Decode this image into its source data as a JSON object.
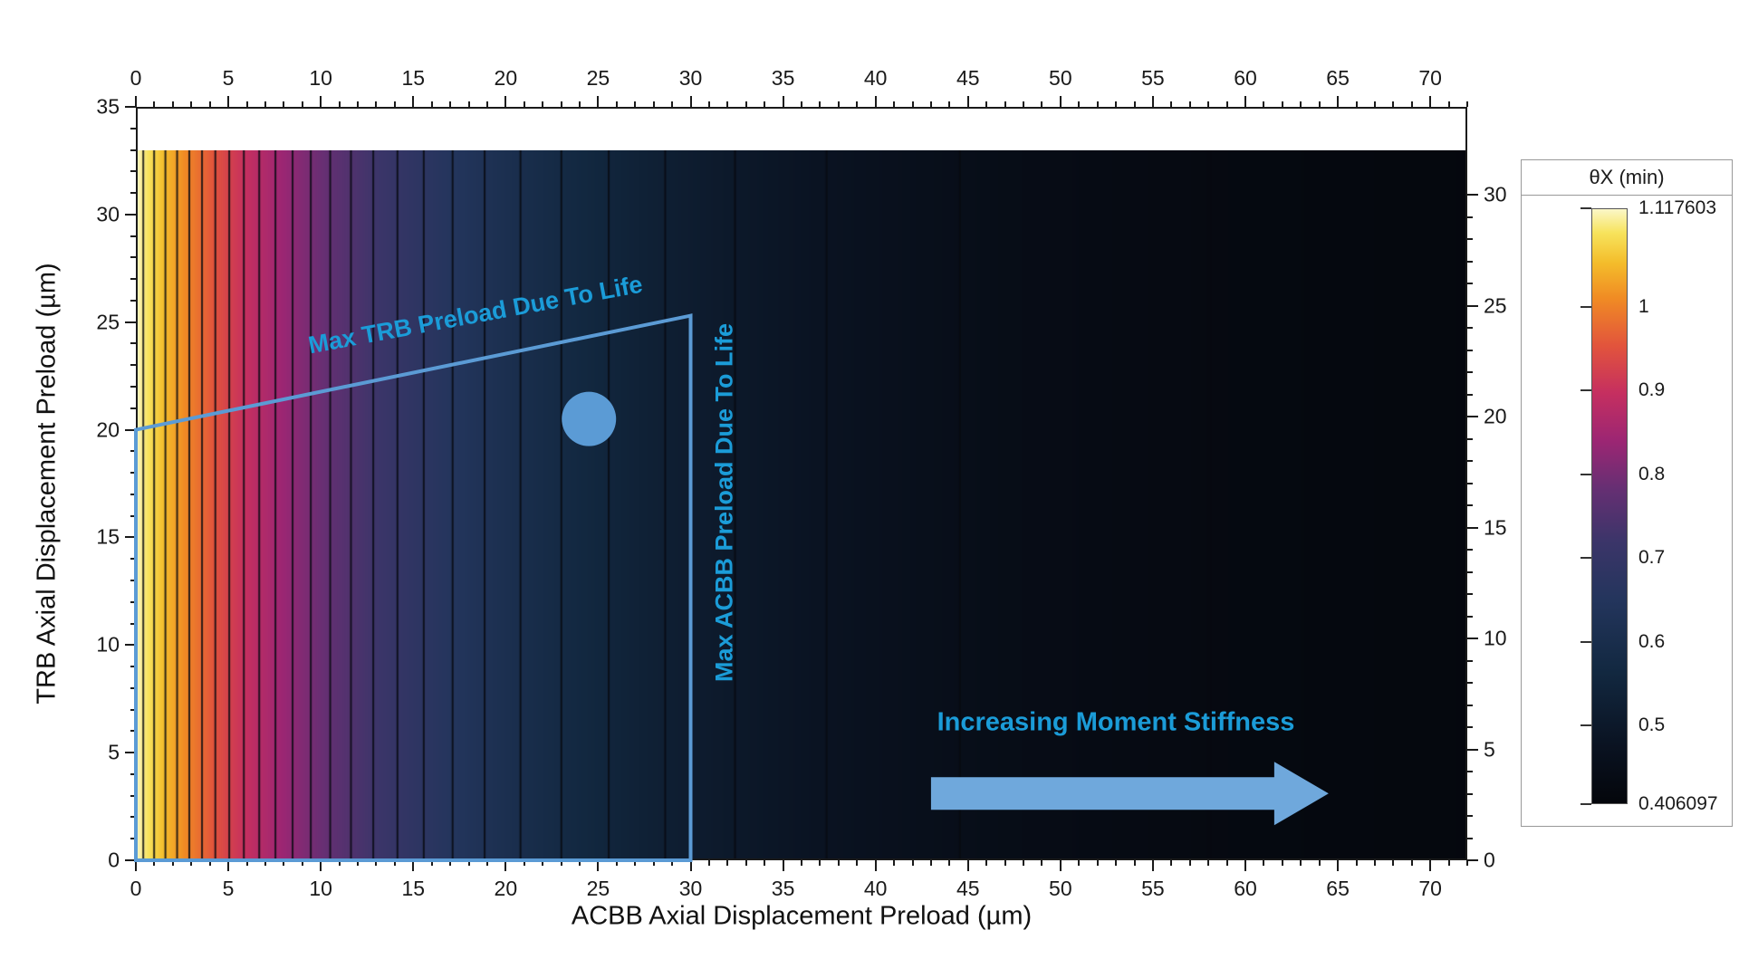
{
  "chart_data": {
    "type": "contour",
    "title": "",
    "xlabel": "ACBB Axial Displacement Preload (µm)",
    "ylabel": "TRB Axial Displacement Preload (µm)",
    "xlim": [
      0,
      72
    ],
    "ylim": [
      0,
      35
    ],
    "right_axis_lim": [
      0,
      30
    ],
    "x_ticks": [
      0,
      5,
      10,
      15,
      20,
      25,
      30,
      35,
      40,
      45,
      50,
      55,
      60,
      65,
      70
    ],
    "y_ticks_left": [
      0,
      5,
      10,
      15,
      20,
      25,
      30,
      35
    ],
    "y_ticks_right": [
      0,
      5,
      10,
      15,
      20,
      25,
      30
    ],
    "fill_y_max": 33,
    "grid": false,
    "field": {
      "description": "thetaX decreases approximately exponentially with ACBB axial preload and is nearly independent of TRB preload (near-vertical contour lines, densely packed at low ACBB preload)",
      "theta_min": 0.406097,
      "theta_max": 1.117603,
      "tau_um": 16,
      "contour_level_step": 0.025,
      "contour_level_min": 0.425,
      "contour_level_max": 1.1
    },
    "colorbar": {
      "title": "θX (min)",
      "tick_labels": [
        "1.117603",
        "1",
        "0.9",
        "0.8",
        "0.7",
        "0.6",
        "0.5",
        "0.406097"
      ],
      "tick_values": [
        1.117603,
        1,
        0.9,
        0.8,
        0.7,
        0.6,
        0.5,
        0.406097
      ]
    },
    "colormap_stops": [
      {
        "t": 0.0,
        "color": "#04060b"
      },
      {
        "t": 0.1,
        "color": "#0a1322"
      },
      {
        "t": 0.22,
        "color": "#122840"
      },
      {
        "t": 0.34,
        "color": "#23355c"
      },
      {
        "t": 0.44,
        "color": "#3b3569"
      },
      {
        "t": 0.53,
        "color": "#662f73"
      },
      {
        "t": 0.61,
        "color": "#9c2673"
      },
      {
        "t": 0.69,
        "color": "#c52f60"
      },
      {
        "t": 0.77,
        "color": "#e2543c"
      },
      {
        "t": 0.85,
        "color": "#f08b24"
      },
      {
        "t": 0.91,
        "color": "#f4bd2b"
      },
      {
        "t": 0.96,
        "color": "#f7e35c"
      },
      {
        "t": 1.0,
        "color": "#fbf7c8"
      }
    ],
    "annotations": {
      "text_color": "#1b9cd8",
      "shape_color": "#5b9bd5",
      "arrow_color": "#6fa8dc",
      "labels": [
        {
          "name": "max-trb-preload",
          "text": "Max TRB Preload Due To Life"
        },
        {
          "name": "max-acbb-preload",
          "text": "Max ACBB Preload Due To Life"
        },
        {
          "name": "increasing-moment-stiffness",
          "text": "Increasing Moment Stiffness"
        }
      ],
      "region_outline_points": [
        [
          0,
          0
        ],
        [
          0,
          20
        ],
        [
          30,
          25.3
        ],
        [
          30,
          0
        ]
      ],
      "design_point_marker": {
        "x": 24.5,
        "y": 20.5
      },
      "arrow": {
        "x_start": 43,
        "x_end": 64.5,
        "y": 3.1
      }
    }
  }
}
